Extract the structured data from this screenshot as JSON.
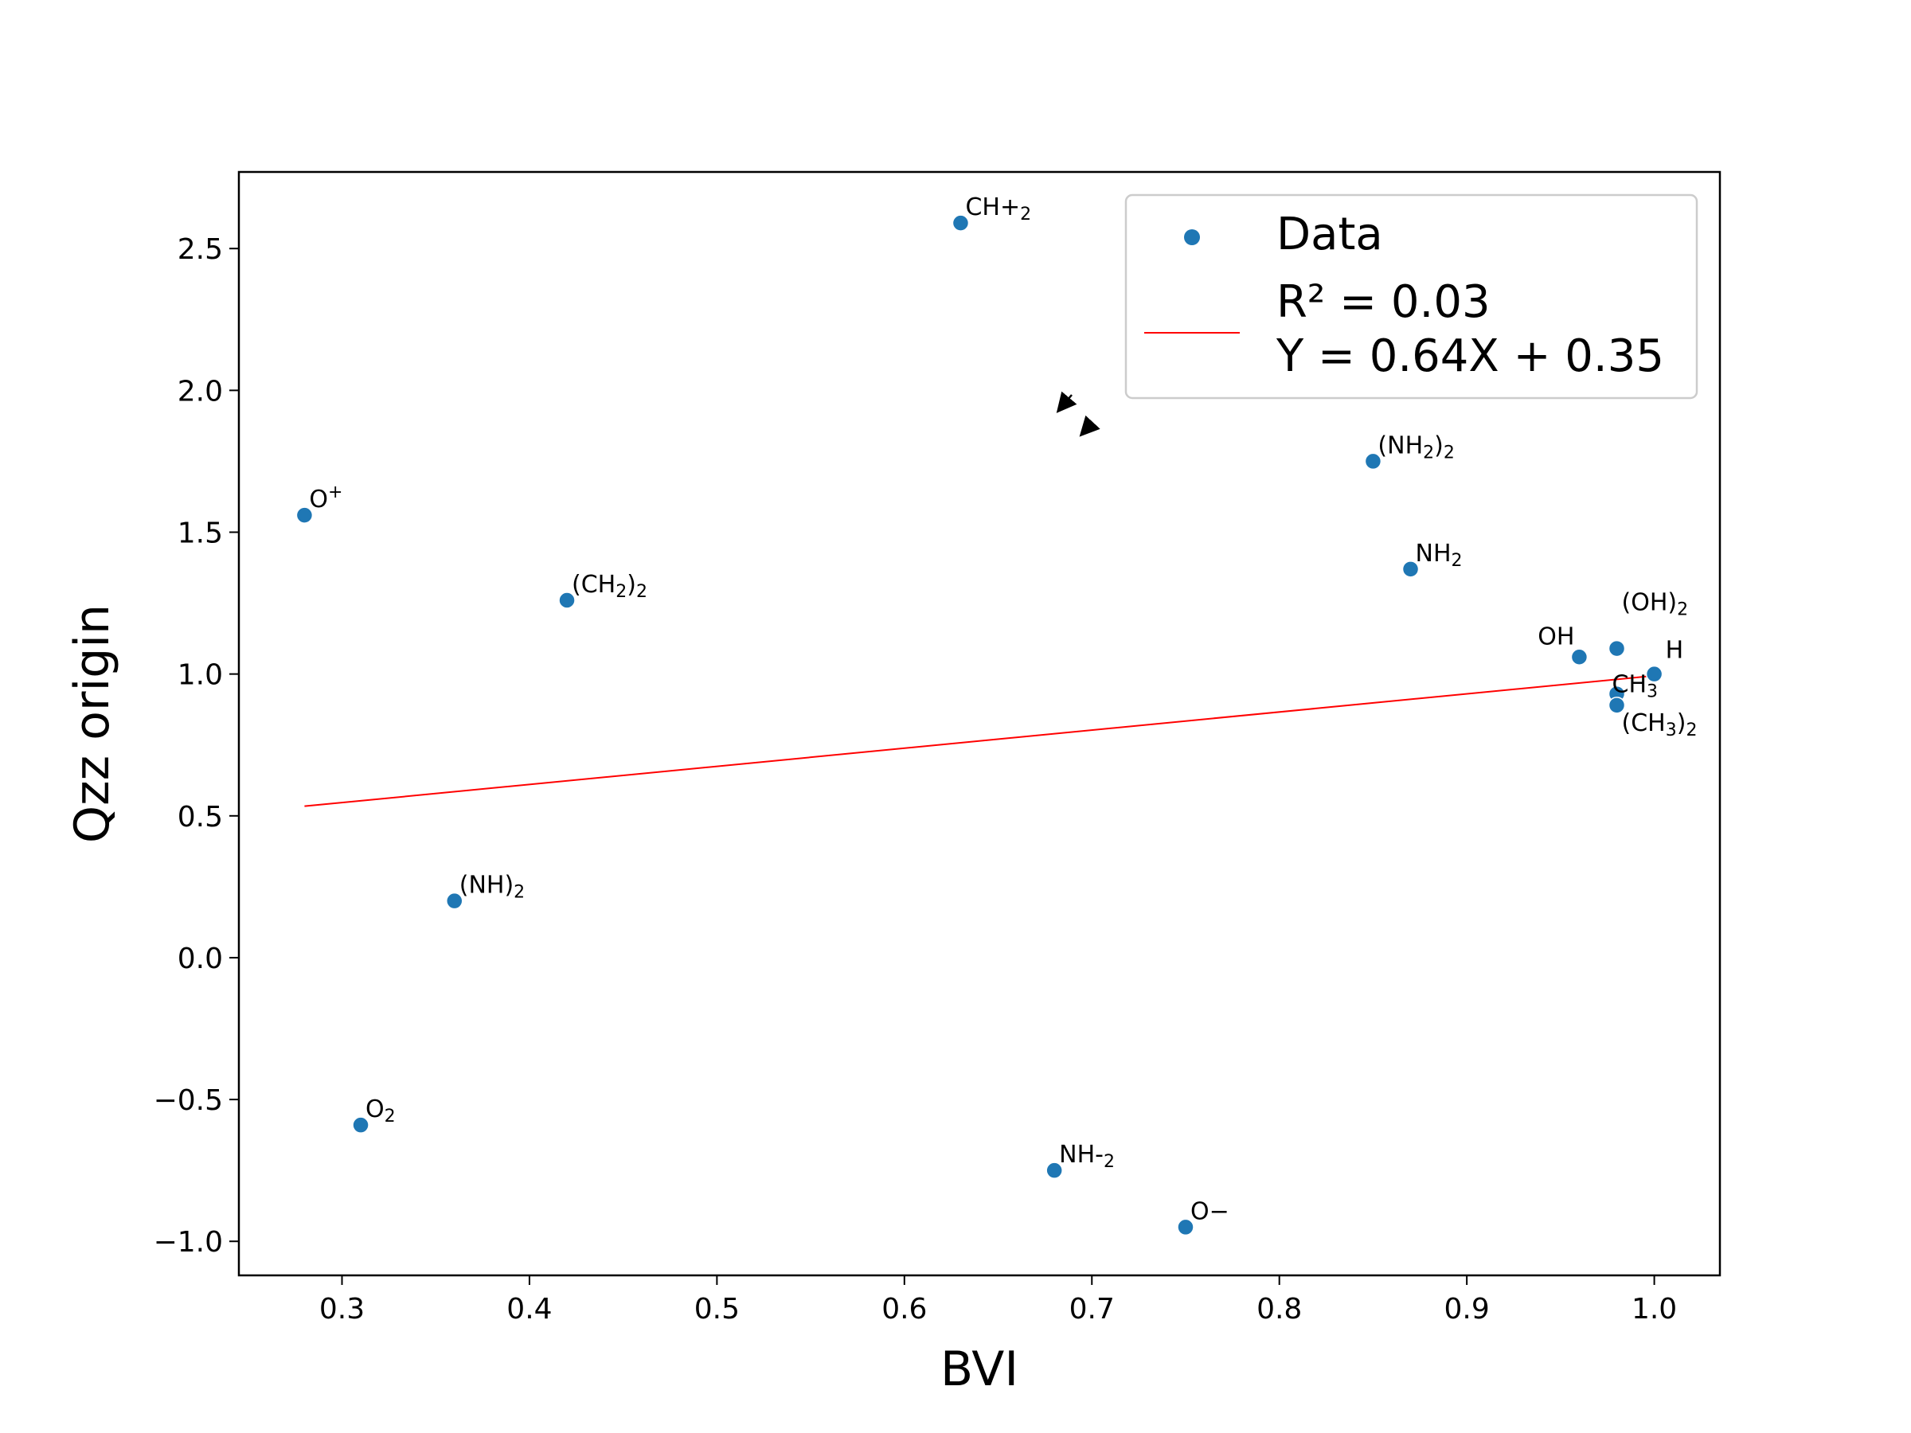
{
  "chart_data": {
    "type": "scatter",
    "xlabel": "BVI",
    "ylabel": "Qzz origin",
    "xlim": [
      0.245,
      1.035
    ],
    "ylim": [
      -1.12,
      2.77
    ],
    "x_ticks": [
      "0.3",
      "0.4",
      "0.5",
      "0.6",
      "0.7",
      "0.8",
      "0.9",
      "1.0"
    ],
    "y_ticks": [
      "−1.0",
      "−0.5",
      "0.0",
      "0.5",
      "1.0",
      "1.5",
      "2.0",
      "2.5"
    ],
    "grid": false,
    "legend_position": "top-right",
    "series": [
      {
        "name": "Data",
        "color": "#1f77b4",
        "points": [
          {
            "x": 0.28,
            "y": 1.56,
            "label": "O",
            "sup": "+"
          },
          {
            "x": 0.31,
            "y": -0.59,
            "label": "O",
            "sub": "2"
          },
          {
            "x": 0.36,
            "y": 0.2,
            "label": "(NH)",
            "sub": "2"
          },
          {
            "x": 0.42,
            "y": 1.26,
            "label": "(CH",
            "sub": "2",
            "label2": ")",
            "sub2": "2"
          },
          {
            "x": 0.63,
            "y": 2.59,
            "label": "CH+",
            "sub": "2"
          },
          {
            "x": 0.68,
            "y": -0.75,
            "label": "NH-",
            "sub": "2"
          },
          {
            "x": 0.75,
            "y": -0.95,
            "label": "O−"
          },
          {
            "x": 0.85,
            "y": 1.75,
            "label": "(NH",
            "sub": "2",
            "label2": ")",
            "sub2": "2"
          },
          {
            "x": 0.87,
            "y": 1.37,
            "label": "NH",
            "sub": "2"
          },
          {
            "x": 0.96,
            "y": 1.06,
            "label": "OH"
          },
          {
            "x": 0.98,
            "y": 1.09,
            "label": "(OH)",
            "sub": "2"
          },
          {
            "x": 1.0,
            "y": 1.0,
            "label": "H"
          },
          {
            "x": 0.98,
            "y": 0.93,
            "label": "CH",
            "sub": "3"
          },
          {
            "x": 0.98,
            "y": 0.89,
            "label": "(CH",
            "sub": "3",
            "label2": ")",
            "sub2": "2"
          }
        ]
      },
      {
        "name": "R² = 0.03",
        "name_line2": "Y = 0.64X + 0.35",
        "type": "line",
        "color": "#ff0000",
        "x": [
          0.28,
          1.0
        ],
        "y": [
          0.534,
          0.994
        ]
      }
    ]
  }
}
